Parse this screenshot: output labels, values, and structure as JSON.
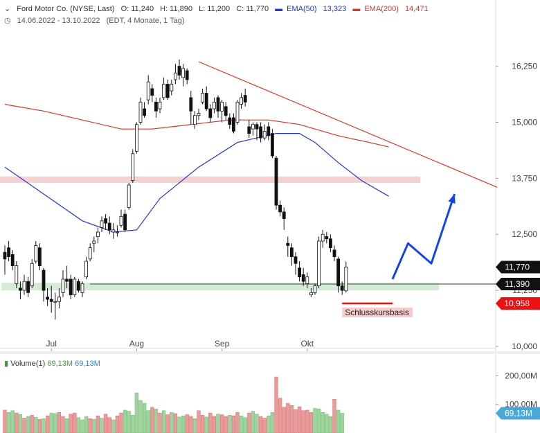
{
  "header": {
    "title": "Ford Motor Co. (NYSE, Last)",
    "open": "O: 11,240",
    "high": "H: 11,890",
    "low": "L: 11,200",
    "close": "C: 11,770",
    "ema50_label": "EMA(50)",
    "ema50_value": "13,323",
    "ema200_label": "EMA(200)",
    "ema200_value": "14,471",
    "range": "14.06.2022 - 13.10.2022",
    "range_note": "(EDT, 4 Monate, 1 Tag)"
  },
  "volume_header": {
    "label": "Volume(1)",
    "value1": "69,13M",
    "value2": "69,13M"
  },
  "colors": {
    "up": "#ffffff",
    "down": "#111111",
    "ema50": "#2233dd",
    "ema200": "#dd3322",
    "trend": "#dd3322",
    "arrow": "#1144ee",
    "resistance_zone": "#f2c4c4",
    "support_zone": "#cfe9cf",
    "vol_up": "#9fd49f",
    "vol_down": "#eb9a9a",
    "last_tag": "#111111",
    "basis_tag": "#ee1111",
    "vol_tag": "#4aa8d8"
  },
  "chart_data": {
    "type": "candlestick",
    "y_ticks": [
      "16,250",
      "15,000",
      "13,750",
      "12,500",
      "11,250",
      "10,000"
    ],
    "y_tick_values": [
      16.25,
      15.0,
      13.75,
      12.5,
      11.25,
      10.0
    ],
    "ylim": [
      10.0,
      16.8
    ],
    "x_labels": [
      "Jul",
      "Aug",
      "Sep",
      "Okt"
    ],
    "x_label_index": [
      12,
      34,
      56,
      78
    ],
    "candles": [
      [
        12.1,
        11.95,
        12.25,
        11.6
      ],
      [
        12.2,
        12.0,
        12.35,
        11.9
      ],
      [
        12.05,
        11.8,
        12.15,
        11.7
      ],
      [
        11.4,
        11.8,
        11.9,
        11.3
      ],
      [
        11.3,
        11.25,
        11.45,
        11.05
      ],
      [
        11.25,
        11.45,
        11.6,
        11.15
      ],
      [
        11.45,
        11.2,
        11.55,
        11.1
      ],
      [
        11.35,
        11.85,
        11.95,
        11.3
      ],
      [
        11.9,
        12.25,
        12.35,
        11.85
      ],
      [
        12.2,
        11.8,
        12.3,
        11.7
      ],
      [
        11.7,
        11.25,
        11.75,
        11.0
      ],
      [
        11.1,
        11.05,
        11.3,
        10.9
      ],
      [
        11.05,
        11.0,
        11.35,
        10.75
      ],
      [
        11.0,
        11.0,
        11.2,
        10.6
      ],
      [
        11.0,
        11.1,
        11.3,
        10.85
      ],
      [
        11.2,
        11.5,
        11.7,
        11.1
      ],
      [
        11.5,
        11.45,
        11.8,
        11.3
      ],
      [
        11.5,
        11.15,
        11.6,
        11.05
      ],
      [
        11.15,
        11.5,
        11.55,
        11.1
      ],
      [
        11.45,
        11.25,
        11.5,
        11.2
      ],
      [
        11.2,
        11.4,
        11.45,
        11.1
      ],
      [
        11.55,
        11.9,
        12.0,
        11.5
      ],
      [
        11.95,
        12.2,
        12.3,
        11.9
      ],
      [
        12.3,
        12.35,
        12.45,
        12.1
      ],
      [
        12.45,
        12.55,
        12.65,
        12.3
      ],
      [
        12.65,
        12.8,
        12.9,
        12.55
      ],
      [
        12.85,
        12.75,
        12.95,
        12.6
      ],
      [
        12.75,
        12.6,
        12.9,
        12.5
      ],
      [
        12.55,
        12.6,
        12.75,
        12.4
      ],
      [
        12.55,
        12.55,
        12.7,
        12.45
      ],
      [
        12.7,
        12.9,
        13.05,
        12.65
      ],
      [
        12.95,
        12.6,
        13.05,
        12.55
      ],
      [
        13.1,
        13.6,
        13.65,
        13.05
      ],
      [
        13.7,
        14.3,
        14.4,
        13.65
      ],
      [
        14.35,
        14.95,
        15.0,
        14.3
      ],
      [
        15.0,
        15.45,
        15.55,
        14.95
      ],
      [
        15.3,
        15.15,
        15.45,
        15.1
      ],
      [
        15.5,
        15.9,
        16.05,
        15.4
      ],
      [
        15.75,
        15.6,
        15.85,
        15.45
      ],
      [
        15.45,
        15.25,
        15.55,
        15.1
      ],
      [
        15.3,
        15.45,
        15.55,
        15.2
      ],
      [
        15.55,
        15.85,
        16.0,
        15.5
      ],
      [
        15.85,
        15.55,
        15.95,
        15.5
      ],
      [
        15.7,
        15.85,
        15.95,
        15.6
      ],
      [
        15.95,
        16.1,
        16.3,
        15.85
      ],
      [
        16.25,
        16.05,
        16.4,
        15.95
      ],
      [
        16.0,
        16.2,
        16.3,
        15.8
      ],
      [
        16.15,
        15.95,
        16.2,
        15.85
      ],
      [
        15.55,
        15.25,
        15.7,
        14.95
      ],
      [
        14.95,
        15.15,
        15.25,
        14.85
      ],
      [
        15.15,
        15.2,
        15.3,
        15.05
      ],
      [
        15.45,
        15.65,
        15.75,
        15.4
      ],
      [
        15.65,
        15.3,
        15.8,
        15.25
      ],
      [
        15.3,
        15.1,
        15.4,
        15.0
      ],
      [
        15.3,
        15.45,
        15.55,
        15.2
      ],
      [
        15.55,
        15.25,
        15.6,
        15.1
      ],
      [
        15.25,
        15.45,
        15.5,
        15.0
      ],
      [
        15.35,
        15.15,
        15.45,
        15.05
      ],
      [
        15.1,
        14.95,
        15.2,
        14.85
      ],
      [
        15.1,
        14.8,
        15.2,
        14.75
      ],
      [
        15.0,
        15.45,
        15.5,
        14.95
      ],
      [
        15.4,
        15.55,
        15.65,
        15.3
      ],
      [
        15.6,
        15.45,
        15.75,
        15.35
      ],
      [
        14.9,
        14.75,
        15.05,
        14.65
      ],
      [
        14.85,
        14.95,
        15.0,
        14.7
      ],
      [
        14.95,
        14.85,
        15.0,
        14.6
      ],
      [
        14.9,
        14.65,
        15.0,
        14.55
      ],
      [
        14.65,
        14.8,
        14.95,
        14.6
      ],
      [
        14.9,
        14.7,
        15.0,
        14.6
      ],
      [
        14.75,
        14.25,
        14.85,
        14.2
      ],
      [
        14.2,
        13.15,
        14.25,
        13.05
      ],
      [
        13.15,
        13.0,
        13.25,
        12.9
      ],
      [
        13.0,
        12.85,
        13.1,
        12.6
      ],
      [
        12.3,
        12.25,
        12.45,
        12.0
      ],
      [
        12.2,
        12.0,
        12.3,
        11.8
      ],
      [
        12.0,
        11.85,
        12.1,
        11.6
      ],
      [
        11.75,
        11.55,
        11.9,
        11.45
      ],
      [
        11.6,
        11.45,
        11.75,
        11.35
      ],
      [
        11.4,
        11.55,
        11.65,
        11.3
      ],
      [
        11.15,
        11.2,
        11.3,
        11.1
      ],
      [
        11.2,
        11.35,
        11.4,
        11.15
      ],
      [
        11.35,
        12.35,
        12.45,
        11.3
      ],
      [
        12.35,
        12.5,
        12.6,
        12.2
      ],
      [
        12.45,
        12.4,
        12.55,
        12.3
      ],
      [
        12.4,
        12.2,
        12.5,
        12.1
      ],
      [
        12.15,
        12.0,
        12.25,
        11.9
      ],
      [
        11.95,
        11.35,
        12.0,
        11.2
      ],
      [
        11.35,
        11.25,
        11.45,
        11.15
      ],
      [
        11.24,
        11.77,
        11.89,
        11.2
      ]
    ],
    "ema50": [
      [
        0,
        14.0
      ],
      [
        10,
        13.4
      ],
      [
        20,
        12.8
      ],
      [
        28,
        12.55
      ],
      [
        34,
        12.6
      ],
      [
        40,
        13.3
      ],
      [
        50,
        14.0
      ],
      [
        60,
        14.55
      ],
      [
        70,
        14.75
      ],
      [
        76,
        14.75
      ],
      [
        80,
        14.55
      ],
      [
        86,
        14.1
      ],
      [
        92,
        13.7
      ],
      [
        99,
        13.35
      ]
    ],
    "ema200": [
      [
        0,
        15.4
      ],
      [
        10,
        15.25
      ],
      [
        20,
        15.05
      ],
      [
        30,
        14.85
      ],
      [
        38,
        14.85
      ],
      [
        48,
        14.95
      ],
      [
        58,
        15.05
      ],
      [
        68,
        15.05
      ],
      [
        76,
        14.95
      ],
      [
        86,
        14.7
      ],
      [
        94,
        14.55
      ],
      [
        99,
        14.45
      ]
    ],
    "trendline": [
      [
        50,
        16.35
      ],
      [
        127,
        13.55
      ]
    ],
    "resistance_zone": [
      13.65,
      13.79
    ],
    "support_zone": [
      11.25,
      11.42
    ],
    "support_line": 11.39,
    "basis_line": {
      "value": 10.96,
      "from": 87,
      "to": 100
    },
    "arrow_path": [
      [
        100,
        11.5
      ],
      [
        104,
        12.3
      ],
      [
        110,
        11.85
      ],
      [
        116,
        13.4
      ]
    ],
    "annotation": "Schlusskursbasis",
    "last_tags": [
      {
        "value": 11.77,
        "label": "11,770"
      },
      {
        "value": 11.39,
        "label": "11,390"
      },
      {
        "value": 10.958,
        "label": "10,958"
      }
    ],
    "volume": {
      "ticks": [
        "200,00M",
        "100,00M"
      ],
      "tick_values": [
        200,
        100
      ],
      "ylim": [
        0,
        230
      ],
      "last_label": "69,13M",
      "values": [
        [
          80,
          0
        ],
        [
          72,
          1
        ],
        [
          78,
          1
        ],
        [
          70,
          0
        ],
        [
          65,
          1
        ],
        [
          52,
          0
        ],
        [
          58,
          1
        ],
        [
          62,
          0
        ],
        [
          55,
          1
        ],
        [
          48,
          0
        ],
        [
          50,
          1
        ],
        [
          60,
          0
        ],
        [
          70,
          1
        ],
        [
          68,
          1
        ],
        [
          72,
          0
        ],
        [
          58,
          0
        ],
        [
          50,
          1
        ],
        [
          66,
          0
        ],
        [
          70,
          0
        ],
        [
          54,
          1
        ],
        [
          46,
          1
        ],
        [
          58,
          1
        ],
        [
          50,
          0
        ],
        [
          48,
          1
        ],
        [
          60,
          0
        ],
        [
          52,
          1
        ],
        [
          66,
          0
        ],
        [
          54,
          0
        ],
        [
          46,
          1
        ],
        [
          60,
          0
        ],
        [
          70,
          0
        ],
        [
          80,
          1
        ],
        [
          76,
          1
        ],
        [
          62,
          1
        ],
        [
          140,
          1
        ],
        [
          114,
          1
        ],
        [
          104,
          1
        ],
        [
          78,
          1
        ],
        [
          90,
          0
        ],
        [
          84,
          1
        ],
        [
          70,
          0
        ],
        [
          78,
          1
        ],
        [
          64,
          0
        ],
        [
          72,
          1
        ],
        [
          68,
          0
        ],
        [
          56,
          1
        ],
        [
          60,
          1
        ],
        [
          64,
          0
        ],
        [
          58,
          0
        ],
        [
          50,
          1
        ],
        [
          78,
          0
        ],
        [
          62,
          0
        ],
        [
          56,
          1
        ],
        [
          70,
          0
        ],
        [
          58,
          0
        ],
        [
          66,
          1
        ],
        [
          64,
          0
        ],
        [
          58,
          0
        ],
        [
          62,
          1
        ],
        [
          60,
          0
        ],
        [
          72,
          0
        ],
        [
          60,
          1
        ],
        [
          54,
          1
        ],
        [
          70,
          0
        ],
        [
          76,
          1
        ],
        [
          66,
          1
        ],
        [
          58,
          0
        ],
        [
          52,
          0
        ],
        [
          60,
          1
        ],
        [
          72,
          1
        ],
        [
          196,
          0
        ],
        [
          122,
          0
        ],
        [
          90,
          0
        ],
        [
          104,
          0
        ],
        [
          96,
          0
        ],
        [
          82,
          0
        ],
        [
          92,
          0
        ],
        [
          78,
          0
        ],
        [
          80,
          0
        ],
        [
          72,
          0
        ],
        [
          86,
          1
        ],
        [
          84,
          1
        ],
        [
          72,
          1
        ],
        [
          66,
          1
        ],
        [
          58,
          1
        ],
        [
          118,
          0
        ],
        [
          80,
          1
        ],
        [
          69,
          1
        ]
      ]
    }
  }
}
